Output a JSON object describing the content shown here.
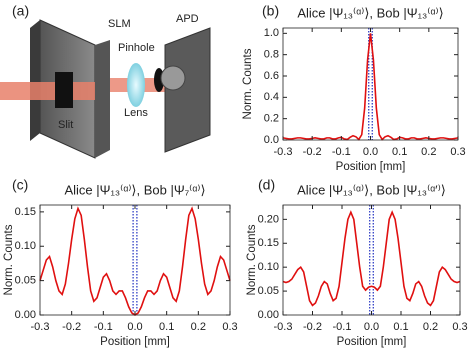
{
  "diagram": {
    "label": "(a)",
    "slm": "SLM",
    "apd": "APD",
    "pinhole": "Pinhole",
    "lens": "Lens",
    "slit": "Slit"
  },
  "chart_data": [
    {
      "type": "line",
      "label": "(b)",
      "title": "Alice |Ψ₁₃⁽ᵅ⁾⟩, Bob |Ψ₁₃⁽ᵅ⁾⟩",
      "xlabel": "Position [mm]",
      "ylabel": "Norm. Counts",
      "x": [
        -0.3,
        -0.29,
        -0.28,
        -0.27,
        -0.26,
        -0.25,
        -0.24,
        -0.23,
        -0.22,
        -0.21,
        -0.2,
        -0.19,
        -0.18,
        -0.17,
        -0.16,
        -0.15,
        -0.14,
        -0.13,
        -0.12,
        -0.11,
        -0.1,
        -0.09,
        -0.08,
        -0.07,
        -0.06,
        -0.05,
        -0.04,
        -0.03,
        -0.02,
        -0.01,
        0,
        0.01,
        0.02,
        0.03,
        0.04,
        0.05,
        0.06,
        0.07,
        0.08,
        0.09,
        0.1,
        0.11,
        0.12,
        0.13,
        0.14,
        0.15,
        0.16,
        0.17,
        0.18,
        0.19,
        0.2,
        0.21,
        0.22,
        0.23,
        0.24,
        0.25,
        0.26,
        0.27,
        0.28,
        0.29,
        0.3
      ],
      "series": [
        {
          "color": "#e01010",
          "values": [
            0.02,
            0.015,
            0.01,
            0.01,
            0.015,
            0.02,
            0.02,
            0.015,
            0.01,
            0.01,
            0.015,
            0.02,
            0.015,
            0.01,
            0.01,
            0.02,
            0.02,
            0.01,
            0.01,
            0.02,
            0.025,
            0.01,
            0.005,
            0.025,
            0.04,
            0.03,
            0.005,
            0.05,
            0.3,
            0.75,
            1.0,
            0.75,
            0.3,
            0.05,
            0.005,
            0.03,
            0.04,
            0.025,
            0.005,
            0.01,
            0.025,
            0.02,
            0.01,
            0.01,
            0.02,
            0.02,
            0.01,
            0.01,
            0.015,
            0.02,
            0.015,
            0.01,
            0.01,
            0.015,
            0.02,
            0.02,
            0.015,
            0.01,
            0.01,
            0.015,
            0.02
          ]
        }
      ],
      "xlim": [
        -0.3,
        0.3
      ],
      "ylim": [
        0,
        1.05
      ],
      "xticks": [
        -0.3,
        -0.2,
        -0.1,
        {
          "value": 0,
          "label": "0.0"
        },
        0.1,
        0.2,
        0.3
      ],
      "yticks": [
        {
          "value": 0,
          "label": "0.0"
        },
        0.2,
        0.4,
        0.6,
        0.8,
        {
          "value": 1,
          "label": "1.0"
        }
      ],
      "vlines": [
        -0.006,
        0.006
      ],
      "vline_color": "#2030c0"
    },
    {
      "type": "line",
      "label": "(c)",
      "title": "Alice |Ψ₁₃⁽ᵅ⁾⟩, Bob |Ψ₇⁽ᵅ⁾⟩",
      "xlabel": "Position [mm]",
      "ylabel": "Norm. Counts",
      "x": [
        -0.3,
        -0.29,
        -0.28,
        -0.27,
        -0.26,
        -0.25,
        -0.24,
        -0.23,
        -0.22,
        -0.21,
        -0.2,
        -0.19,
        -0.18,
        -0.17,
        -0.16,
        -0.15,
        -0.14,
        -0.13,
        -0.12,
        -0.11,
        -0.1,
        -0.09,
        -0.08,
        -0.07,
        -0.06,
        -0.05,
        -0.04,
        -0.03,
        -0.02,
        -0.01,
        0,
        0.01,
        0.02,
        0.03,
        0.04,
        0.05,
        0.06,
        0.07,
        0.08,
        0.09,
        0.1,
        0.11,
        0.12,
        0.13,
        0.14,
        0.15,
        0.16,
        0.17,
        0.18,
        0.19,
        0.2,
        0.21,
        0.22,
        0.23,
        0.24,
        0.25,
        0.26,
        0.27,
        0.28,
        0.29,
        0.3
      ],
      "series": [
        {
          "color": "#e01010",
          "values": [
            0.05,
            0.065,
            0.08,
            0.085,
            0.07,
            0.05,
            0.035,
            0.03,
            0.045,
            0.075,
            0.11,
            0.14,
            0.155,
            0.145,
            0.11,
            0.07,
            0.035,
            0.02,
            0.025,
            0.04,
            0.055,
            0.06,
            0.05,
            0.035,
            0.03,
            0.035,
            0.035,
            0.025,
            0.012,
            0.003,
            0.0,
            0.003,
            0.012,
            0.025,
            0.035,
            0.035,
            0.03,
            0.035,
            0.05,
            0.06,
            0.055,
            0.04,
            0.025,
            0.02,
            0.035,
            0.07,
            0.11,
            0.145,
            0.155,
            0.14,
            0.11,
            0.075,
            0.045,
            0.03,
            0.035,
            0.05,
            0.07,
            0.085,
            0.08,
            0.065,
            0.05
          ]
        }
      ],
      "xlim": [
        -0.3,
        0.3
      ],
      "ylim": [
        0,
        0.16
      ],
      "xticks": [
        -0.3,
        -0.2,
        -0.1,
        {
          "value": 0,
          "label": "0.0"
        },
        0.1,
        0.2,
        0.3
      ],
      "yticks": [
        {
          "value": 0,
          "label": "0.00"
        },
        0.05,
        {
          "value": 0.1,
          "label": "0.10"
        },
        0.15
      ],
      "vlines": [
        -0.006,
        0.006
      ],
      "vline_color": "#2030c0"
    },
    {
      "type": "line",
      "label": "(d)",
      "title": "Alice |Ψ₁₃⁽ᵅ⁾⟩, Bob |Ψ₁₃⁽ᵅ′⁾⟩",
      "xlabel": "Position [mm]",
      "ylabel": "Norm. Counts",
      "x": [
        -0.3,
        -0.29,
        -0.28,
        -0.27,
        -0.26,
        -0.25,
        -0.24,
        -0.23,
        -0.22,
        -0.21,
        -0.2,
        -0.19,
        -0.18,
        -0.17,
        -0.16,
        -0.15,
        -0.14,
        -0.13,
        -0.12,
        -0.11,
        -0.1,
        -0.09,
        -0.08,
        -0.07,
        -0.06,
        -0.05,
        -0.04,
        -0.03,
        -0.02,
        -0.01,
        0,
        0.01,
        0.02,
        0.03,
        0.04,
        0.05,
        0.06,
        0.07,
        0.08,
        0.09,
        0.1,
        0.11,
        0.12,
        0.13,
        0.14,
        0.15,
        0.16,
        0.17,
        0.18,
        0.19,
        0.2,
        0.21,
        0.22,
        0.23,
        0.24,
        0.25,
        0.26,
        0.27,
        0.28,
        0.29,
        0.3
      ],
      "series": [
        {
          "color": "#e01010",
          "values": [
            0.07,
            0.068,
            0.07,
            0.075,
            0.085,
            0.095,
            0.1,
            0.09,
            0.06,
            0.03,
            0.02,
            0.025,
            0.04,
            0.06,
            0.07,
            0.065,
            0.045,
            0.03,
            0.035,
            0.06,
            0.11,
            0.16,
            0.2,
            0.215,
            0.2,
            0.15,
            0.1,
            0.06,
            0.052,
            0.058,
            0.06,
            0.058,
            0.052,
            0.06,
            0.1,
            0.15,
            0.2,
            0.215,
            0.2,
            0.16,
            0.11,
            0.06,
            0.035,
            0.03,
            0.045,
            0.065,
            0.07,
            0.06,
            0.04,
            0.025,
            0.02,
            0.03,
            0.06,
            0.09,
            0.1,
            0.095,
            0.085,
            0.075,
            0.07,
            0.068,
            0.07
          ]
        }
      ],
      "xlim": [
        -0.3,
        0.3
      ],
      "ylim": [
        0,
        0.23
      ],
      "xticks": [
        -0.3,
        -0.2,
        -0.1,
        {
          "value": 0,
          "label": "0.0"
        },
        0.1,
        0.2,
        0.3
      ],
      "yticks": [
        {
          "value": 0,
          "label": "0.00"
        },
        0.05,
        {
          "value": 0.1,
          "label": "0.10"
        },
        0.15,
        {
          "value": 0.2,
          "label": "0.20"
        }
      ],
      "vlines": [
        -0.006,
        0.006
      ],
      "vline_color": "#2030c0"
    }
  ]
}
